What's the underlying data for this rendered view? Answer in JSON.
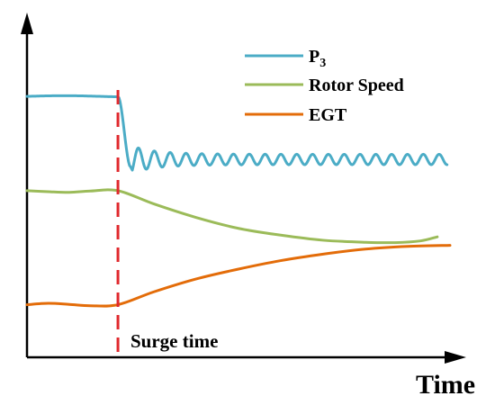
{
  "chart_data": {
    "type": "line",
    "title": "",
    "xlabel": "Time",
    "ylabel": "",
    "grid": false,
    "axis_ticks": false,
    "legend": {
      "placement": "top-right",
      "entries": [
        {
          "name": "P",
          "subscript": "3"
        },
        {
          "name": "Rotor Speed",
          "subscript": ""
        },
        {
          "name": "EGT",
          "subscript": ""
        }
      ]
    },
    "xlim": [
      0,
      1
    ],
    "ylim": [
      0,
      1
    ],
    "annotation": {
      "label": "Surge time",
      "x": 0.215,
      "color": "#e0282d",
      "style": "dashed"
    },
    "series": [
      {
        "name": "P3",
        "color": "#4bacc6",
        "style": "oscillating",
        "pre_level": 0.769,
        "pre_end": 0.215,
        "drop_end": 0.245,
        "settle_level": 0.583,
        "osc_amplitude": 0.028,
        "osc_cycles": 20,
        "x_end": 0.993
      },
      {
        "name": "Rotor Speed",
        "color": "#9bbb59",
        "points": [
          [
            0.0,
            0.491
          ],
          [
            0.05,
            0.488
          ],
          [
            0.1,
            0.486
          ],
          [
            0.15,
            0.49
          ],
          [
            0.215,
            0.491
          ],
          [
            0.3,
            0.452
          ],
          [
            0.4,
            0.412
          ],
          [
            0.5,
            0.38
          ],
          [
            0.6,
            0.36
          ],
          [
            0.7,
            0.345
          ],
          [
            0.8,
            0.339
          ],
          [
            0.87,
            0.338
          ],
          [
            0.93,
            0.343
          ],
          [
            0.97,
            0.355
          ]
        ]
      },
      {
        "name": "EGT",
        "color": "#e36c09",
        "points": [
          [
            0.0,
            0.155
          ],
          [
            0.05,
            0.159
          ],
          [
            0.1,
            0.156
          ],
          [
            0.15,
            0.152
          ],
          [
            0.215,
            0.155
          ],
          [
            0.3,
            0.193
          ],
          [
            0.4,
            0.231
          ],
          [
            0.5,
            0.26
          ],
          [
            0.6,
            0.285
          ],
          [
            0.7,
            0.304
          ],
          [
            0.8,
            0.319
          ],
          [
            0.9,
            0.327
          ],
          [
            1.0,
            0.33
          ]
        ]
      }
    ]
  }
}
